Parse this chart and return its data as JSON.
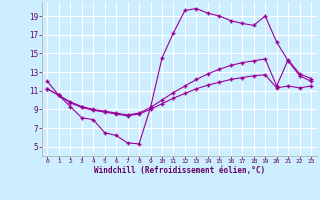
{
  "xlabel": "Windchill (Refroidissement éolien,°C)",
  "background_color": "#cceeff",
  "line_color": "#990099",
  "grid_color": "#ffffff",
  "xlim": [
    -0.5,
    23.5
  ],
  "ylim": [
    4,
    20.5
  ],
  "xticks": [
    0,
    1,
    2,
    3,
    4,
    5,
    6,
    7,
    8,
    9,
    10,
    11,
    12,
    13,
    14,
    15,
    16,
    17,
    18,
    19,
    20,
    21,
    22,
    23
  ],
  "yticks": [
    5,
    7,
    9,
    11,
    13,
    15,
    17,
    19
  ],
  "series1_x": [
    0,
    1,
    2,
    3,
    4,
    5,
    6,
    7,
    8,
    9,
    10,
    11,
    12,
    13,
    14,
    15,
    16,
    17,
    18,
    19,
    20,
    21,
    22,
    23
  ],
  "series1_y": [
    12.0,
    10.5,
    9.3,
    8.1,
    7.9,
    6.5,
    6.2,
    5.4,
    5.3,
    9.2,
    14.5,
    17.2,
    19.6,
    19.8,
    19.3,
    19.0,
    18.5,
    18.2,
    18.0,
    19.0,
    16.2,
    14.2,
    12.6,
    12.0
  ],
  "series2_x": [
    0,
    1,
    2,
    3,
    4,
    5,
    6,
    7,
    8,
    9,
    10,
    11,
    12,
    13,
    14,
    15,
    16,
    17,
    18,
    19,
    20,
    21,
    22,
    23
  ],
  "series2_y": [
    11.2,
    10.5,
    9.8,
    9.3,
    9.0,
    8.8,
    8.6,
    8.4,
    8.6,
    9.2,
    10.0,
    10.8,
    11.5,
    12.2,
    12.8,
    13.3,
    13.7,
    14.0,
    14.2,
    14.4,
    11.5,
    14.3,
    12.8,
    12.3
  ],
  "series3_x": [
    0,
    1,
    2,
    3,
    4,
    5,
    6,
    7,
    8,
    9,
    10,
    11,
    12,
    13,
    14,
    15,
    16,
    17,
    18,
    19,
    20,
    21,
    22,
    23
  ],
  "series3_y": [
    11.2,
    10.5,
    9.7,
    9.2,
    8.9,
    8.7,
    8.5,
    8.3,
    8.5,
    9.0,
    9.6,
    10.2,
    10.7,
    11.2,
    11.6,
    11.9,
    12.2,
    12.4,
    12.6,
    12.7,
    11.3,
    11.5,
    11.3,
    11.5
  ]
}
